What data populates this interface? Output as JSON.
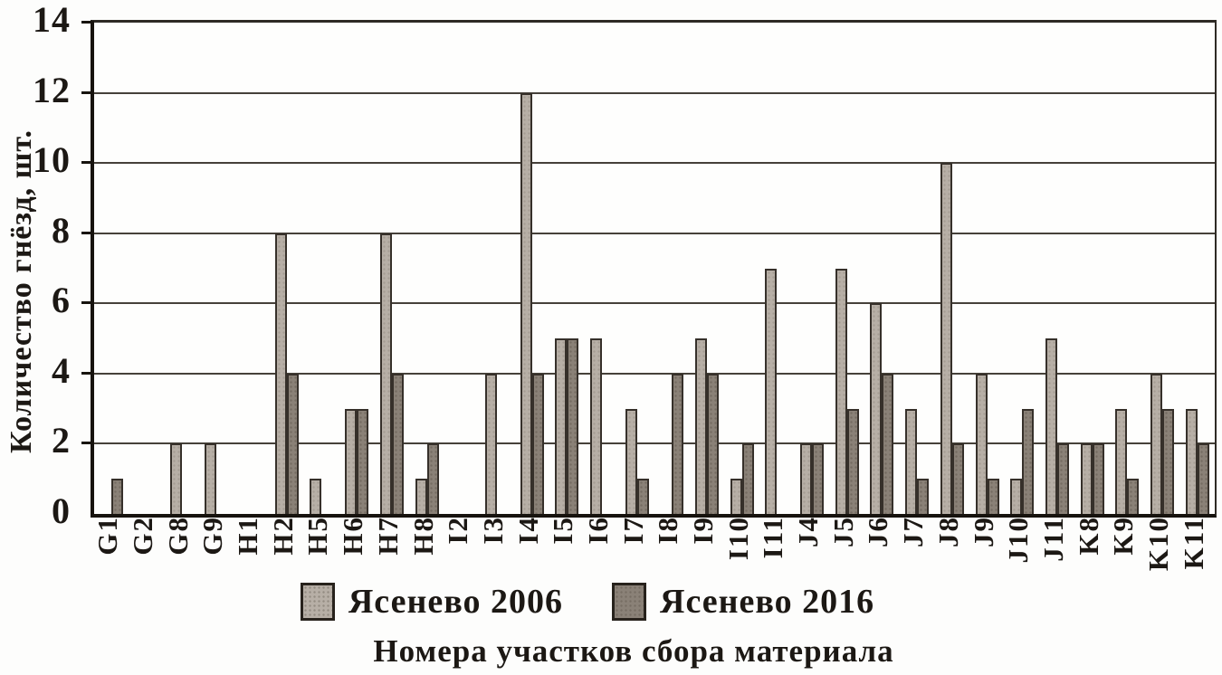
{
  "y_axis": {
    "title": "Количество гнёзд, шт.",
    "ticks": [
      0,
      2,
      4,
      6,
      8,
      10,
      12,
      14
    ]
  },
  "x_axis": {
    "title": "Номера участков сбора материала"
  },
  "legend": {
    "items": [
      {
        "label": "Ясенево 2006",
        "color": "#b7afa6"
      },
      {
        "label": "Ясенево 2016",
        "color": "#8a8177"
      }
    ]
  },
  "chart_data": {
    "type": "bar",
    "title": "",
    "xlabel": "Номера участков сбора материала",
    "ylabel": "Количество гнёзд, шт.",
    "ylim": [
      0,
      14
    ],
    "grid": true,
    "legend_position": "bottom",
    "categories": [
      "G1",
      "G2",
      "G8",
      "G9",
      "H1",
      "H2",
      "H5",
      "H6",
      "H7",
      "H8",
      "I2",
      "I3",
      "I4",
      "I5",
      "I6",
      "I7",
      "I8",
      "I9",
      "I10",
      "I11",
      "J4",
      "J5",
      "J6",
      "J7",
      "J8",
      "J9",
      "J10",
      "J11",
      "K8",
      "K9",
      "K10",
      "K11"
    ],
    "series": [
      {
        "name": "Ясенево 2006",
        "color": "#b7afa6",
        "values": [
          0,
          0,
          2,
          2,
          0,
          8,
          1,
          3,
          8,
          1,
          0,
          4,
          12,
          5,
          5,
          3,
          0,
          5,
          1,
          7,
          2,
          7,
          6,
          3,
          10,
          4,
          1,
          5,
          2,
          3,
          4,
          3
        ]
      },
      {
        "name": "Ясенево 2016",
        "color": "#8a8177",
        "values": [
          1,
          0,
          0,
          0,
          0,
          4,
          0,
          3,
          4,
          2,
          0,
          0,
          4,
          5,
          0,
          1,
          4,
          4,
          2,
          0,
          2,
          3,
          4,
          1,
          2,
          1,
          3,
          2,
          2,
          1,
          3,
          2
        ]
      }
    ]
  }
}
